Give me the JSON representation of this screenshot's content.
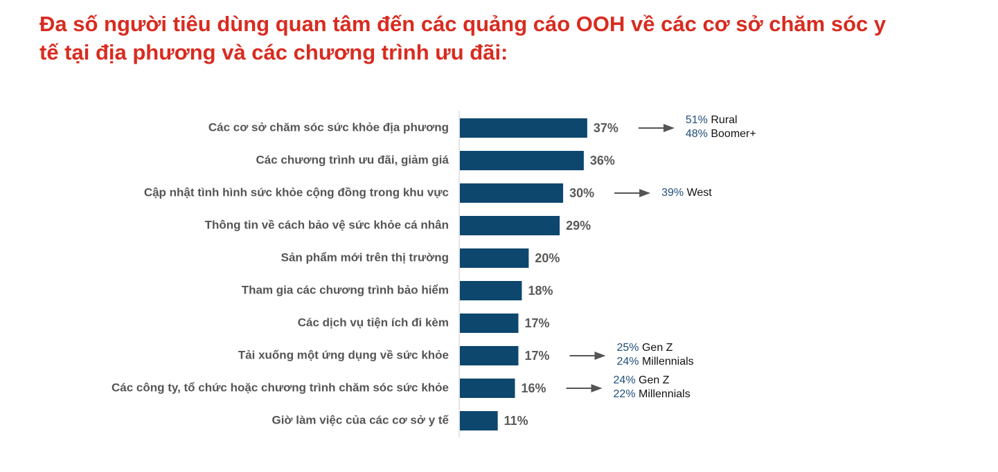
{
  "chart_data": {
    "type": "bar",
    "orientation": "horizontal",
    "title": "Đa số người tiêu dùng quan tâm đến các quảng cáo OOH về các cơ sở chăm sóc y tế tại địa phương và các chương trình ưu đãi:",
    "categories": [
      "Các cơ sở chăm sóc sức khỏe địa phương",
      "Các chương trình ưu đãi, giảm giá",
      "Cập nhật tình hình sức khỏe cộng đồng trong khu vực",
      "Thông tin về cách bảo vệ sức khỏe cá nhân",
      "Sản phẩm mới trên thị trường",
      "Tham gia các chương trình bảo hiểm",
      "Các dịch vụ tiện ích đi kèm",
      "Tải xuống một ứng dụng về sức khỏe",
      "Các công ty, tổ chức hoặc chương trình chăm sóc sức khỏe",
      "Giờ làm việc của các cơ sở y tế"
    ],
    "values": [
      37,
      36,
      30,
      29,
      20,
      18,
      17,
      17,
      16,
      11
    ],
    "value_labels": [
      "37%",
      "36%",
      "30%",
      "29%",
      "20%",
      "18%",
      "17%",
      "17%",
      "16%",
      "11%"
    ],
    "color": "#0d476d",
    "callouts": [
      [
        {
          "value": 51,
          "label": "51%",
          "segment": "Rural"
        },
        {
          "value": 48,
          "label": "48%",
          "segment": "Boomer+"
        }
      ],
      null,
      [
        {
          "value": 39,
          "label": "39%",
          "segment": "West"
        }
      ],
      null,
      null,
      null,
      null,
      [
        {
          "value": 25,
          "label": "25%",
          "segment": "Gen Z"
        },
        {
          "value": 24,
          "label": "24%",
          "segment": "Millennials"
        }
      ],
      [
        {
          "value": 24,
          "label": "24%",
          "segment": "Gen Z"
        },
        {
          "value": 22,
          "label": "22%",
          "segment": "Millennials"
        }
      ],
      null
    ]
  }
}
